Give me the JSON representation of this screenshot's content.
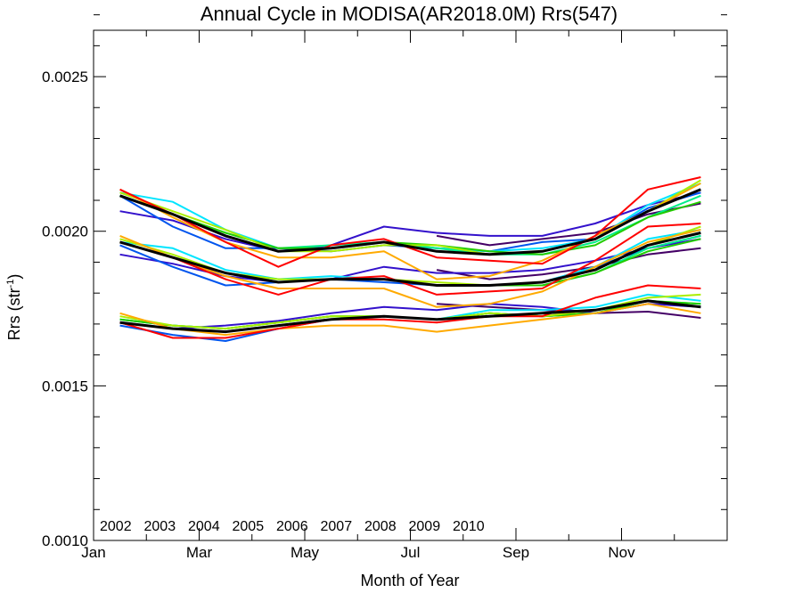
{
  "chart_data": {
    "type": "line",
    "title": "Annual Cycle in MODISA(AR2018.0M) Rrs(547)",
    "xlabel": "Month of Year",
    "ylabel": {
      "prefix": "Rrs (str",
      "superscript": "-1",
      "suffix": ")"
    },
    "xlim": [
      1,
      13
    ],
    "ylim": [
      0.001,
      0.00265
    ],
    "x_ticks": [
      {
        "value": 1,
        "label": "Jan"
      },
      {
        "value": 3,
        "label": "Mar"
      },
      {
        "value": 5,
        "label": "May"
      },
      {
        "value": 7,
        "label": "Jul"
      },
      {
        "value": 9,
        "label": "Sep"
      },
      {
        "value": 11,
        "label": "Nov"
      }
    ],
    "y_ticks": [
      {
        "value": 0.001,
        "label": "0.0010"
      },
      {
        "value": 0.0015,
        "label": "0.0015"
      },
      {
        "value": 0.002,
        "label": "0.0020"
      },
      {
        "value": 0.0025,
        "label": "0.0025"
      }
    ],
    "y_minor_step": 0.0001,
    "x_minor_step": 1,
    "grid": false,
    "legend_position": "bottom-left",
    "x": [
      1.5,
      2.5,
      3.5,
      4.5,
      5.5,
      6.5,
      7.5,
      8.5,
      9.5,
      10.5,
      11.5,
      12.5
    ],
    "groups": [
      "upper",
      "middle",
      "lower"
    ],
    "series": [
      {
        "name": "2002",
        "color": "#440066",
        "values": {
          "upper": [
            null,
            null,
            null,
            null,
            null,
            null,
            0.001985,
            0.001955,
            0.001975,
            0.001995,
            0.002055,
            0.00209
          ],
          "middle": [
            null,
            null,
            null,
            null,
            null,
            null,
            0.001875,
            0.001845,
            0.00186,
            0.001885,
            0.001925,
            0.001945
          ],
          "lower": [
            null,
            null,
            null,
            null,
            null,
            null,
            0.001765,
            0.001755,
            0.001745,
            0.001735,
            0.00174,
            0.00172
          ]
        }
      },
      {
        "name": "2003",
        "color": "#3311cc",
        "values": {
          "upper": [
            0.002065,
            0.002035,
            0.001975,
            0.001935,
            0.001955,
            0.002015,
            0.001995,
            0.001985,
            0.001985,
            0.002025,
            0.002085,
            0.002125
          ],
          "middle": [
            0.001925,
            0.001895,
            0.001855,
            0.001835,
            0.001845,
            0.001885,
            0.001865,
            0.001865,
            0.001875,
            0.001905,
            0.001945,
            0.001975
          ],
          "lower": [
            0.001705,
            0.001685,
            0.001695,
            0.00171,
            0.001735,
            0.001755,
            0.001745,
            0.001765,
            0.001755,
            0.001735,
            0.001765,
            0.001755
          ]
        }
      },
      {
        "name": "2004",
        "color": "#0055ee",
        "values": {
          "upper": [
            0.002115,
            0.002015,
            0.001945,
            0.001945,
            0.001935,
            0.001955,
            0.001945,
            0.001935,
            0.001965,
            0.001975,
            0.002075,
            0.002125
          ],
          "middle": [
            0.001955,
            0.001885,
            0.001825,
            0.001835,
            0.001845,
            0.001835,
            0.001825,
            0.001825,
            0.001835,
            0.001885,
            0.001945,
            0.001985
          ],
          "lower": [
            0.001695,
            0.001665,
            0.001645,
            0.001685,
            0.001715,
            0.001725,
            0.001715,
            0.001735,
            0.001725,
            0.001735,
            0.001775,
            0.001755
          ]
        }
      },
      {
        "name": "2005",
        "color": "#00e5ff",
        "values": {
          "upper": [
            0.002125,
            0.002095,
            0.002005,
            0.001945,
            0.001945,
            0.001965,
            0.001945,
            0.001935,
            0.001945,
            0.001975,
            0.002085,
            0.002155
          ],
          "middle": [
            0.001965,
            0.001945,
            0.001875,
            0.001845,
            0.001855,
            0.001845,
            0.001825,
            0.001825,
            0.001835,
            0.001885,
            0.001975,
            0.002005
          ],
          "lower": [
            0.001715,
            0.001695,
            0.001685,
            0.001705,
            0.001725,
            0.001725,
            0.001715,
            0.001745,
            0.001745,
            0.001755,
            0.001795,
            0.001775
          ]
        }
      },
      {
        "name": "2006",
        "color": "#00ee88",
        "values": {
          "upper": [
            0.002115,
            0.002055,
            0.001995,
            0.001945,
            0.001955,
            0.001965,
            0.001945,
            0.001925,
            0.001925,
            0.001965,
            0.002045,
            0.002115
          ],
          "middle": [
            0.001965,
            0.001915,
            0.001865,
            0.001845,
            0.001845,
            0.001845,
            0.001825,
            0.001825,
            0.001825,
            0.001865,
            0.001945,
            0.001985
          ],
          "lower": [
            0.001715,
            0.001695,
            0.001685,
            0.001705,
            0.001725,
            0.001725,
            0.001715,
            0.001735,
            0.001725,
            0.001735,
            0.001775,
            0.001765
          ]
        }
      },
      {
        "name": "2007",
        "color": "#22cc00",
        "values": {
          "upper": [
            0.002115,
            0.002055,
            0.001995,
            0.001945,
            0.001945,
            0.001965,
            0.001955,
            0.001935,
            0.001925,
            0.001955,
            0.002045,
            0.002095
          ],
          "middle": [
            0.001965,
            0.001915,
            0.001865,
            0.001835,
            0.001845,
            0.001845,
            0.001825,
            0.001825,
            0.001825,
            0.001865,
            0.001935,
            0.001975
          ],
          "lower": [
            0.001715,
            0.001695,
            0.001685,
            0.001705,
            0.001725,
            0.001725,
            0.001715,
            0.001735,
            0.001725,
            0.001735,
            0.001775,
            0.001765
          ]
        }
      },
      {
        "name": "2008",
        "color": "#aaee00",
        "values": {
          "upper": [
            0.002125,
            0.002065,
            0.002005,
            0.001935,
            0.001935,
            0.001955,
            0.001955,
            0.001925,
            0.001935,
            0.001975,
            0.002065,
            0.002165
          ],
          "middle": [
            0.001975,
            0.001925,
            0.001865,
            0.001845,
            0.001845,
            0.001845,
            0.001835,
            0.001825,
            0.001835,
            0.001875,
            0.001955,
            0.002015
          ],
          "lower": [
            0.001725,
            0.001695,
            0.001685,
            0.001705,
            0.001725,
            0.001725,
            0.001715,
            0.001735,
            0.001725,
            0.001745,
            0.001785,
            0.001795
          ]
        }
      },
      {
        "name": "2009",
        "color": "#ffaa00",
        "values": {
          "upper": [
            0.002135,
            0.002045,
            0.001965,
            0.001915,
            0.001915,
            0.001935,
            0.001845,
            0.001855,
            0.001905,
            0.001985,
            0.002065,
            0.002155
          ],
          "middle": [
            0.001985,
            0.001915,
            0.001855,
            0.001815,
            0.001815,
            0.001815,
            0.001755,
            0.001765,
            0.001805,
            0.001885,
            0.001965,
            0.002005
          ],
          "lower": [
            0.001735,
            0.001685,
            0.001665,
            0.001685,
            0.001695,
            0.001695,
            0.001675,
            0.001695,
            0.001715,
            0.001735,
            0.001765,
            0.001735
          ]
        }
      },
      {
        "name": "2010",
        "color": "#ff0000",
        "values": {
          "upper": [
            0.002135,
            0.002055,
            0.001965,
            0.001885,
            0.001955,
            0.001975,
            0.001915,
            0.001905,
            0.001895,
            0.001985,
            0.002135,
            0.002175
          ],
          "middle": [
            0.001965,
            0.001915,
            0.001845,
            0.001795,
            0.001845,
            0.001855,
            0.001795,
            0.001805,
            0.001815,
            0.001905,
            0.002015,
            0.002025
          ],
          "lower": [
            0.001705,
            0.001655,
            0.001655,
            0.001685,
            0.001715,
            0.001715,
            0.001705,
            0.001725,
            0.001725,
            0.001785,
            0.001825,
            0.001815
          ]
        }
      }
    ],
    "climatology": {
      "color": "#000000",
      "values": {
        "upper": [
          0.002115,
          0.002055,
          0.001985,
          0.001935,
          0.001945,
          0.001965,
          0.001935,
          0.001925,
          0.001935,
          0.001975,
          0.002065,
          0.002135
        ],
        "middle": [
          0.001965,
          0.001915,
          0.001865,
          0.001835,
          0.001845,
          0.001845,
          0.001825,
          0.001825,
          0.001835,
          0.001875,
          0.001955,
          0.001995
        ],
        "lower": [
          0.001705,
          0.001685,
          0.001675,
          0.001695,
          0.001715,
          0.001725,
          0.001715,
          0.001725,
          0.001735,
          0.001745,
          0.001775,
          0.001755
        ]
      }
    }
  }
}
